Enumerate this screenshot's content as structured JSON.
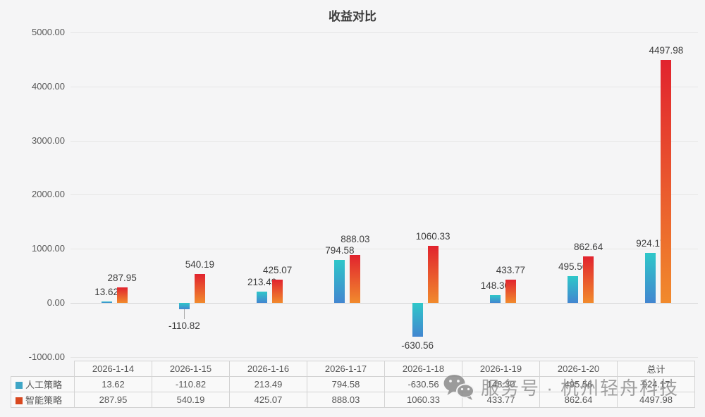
{
  "chart_data": {
    "type": "bar",
    "title": "收益对比",
    "categories": [
      "2026-1-14",
      "2026-1-15",
      "2026-1-16",
      "2026-1-17",
      "2026-1-18",
      "2026-1-19",
      "2026-1-20",
      "总计"
    ],
    "series": [
      {
        "name": "人工策略",
        "values": [
          13.62,
          -110.82,
          213.49,
          794.58,
          -630.56,
          148.3,
          495.56,
          924.17
        ],
        "labels": [
          "13.62",
          "-110.82",
          "213.49",
          "794.58",
          "-630.56",
          "148.30",
          "495.56",
          "924.17"
        ],
        "bar_color_top": "#2fc7c9",
        "bar_color_bottom": "#4286d0",
        "legend_color": "#3fa6c6"
      },
      {
        "name": "智能策略",
        "values": [
          287.95,
          540.19,
          425.07,
          888.03,
          1060.33,
          433.77,
          862.64,
          4497.98
        ],
        "labels": [
          "287.95",
          "540.19",
          "425.07",
          "888.03",
          "1060.33",
          "433.77",
          "862.64",
          "4497.98"
        ],
        "bar_color_top": "#e1232e",
        "bar_color_bottom": "#f18a2d",
        "legend_color": "#d9481f"
      }
    ],
    "ylim": [
      -1000,
      5000
    ],
    "ytick_values": [
      5000,
      4000,
      3000,
      2000,
      1000,
      0,
      -1000
    ],
    "ytick_labels": [
      "5000.00",
      "4000.00",
      "3000.00",
      "2000.00",
      "1000.00",
      "0.00",
      "-1000.00"
    ],
    "grid": true,
    "legend_position": "table-rows-left"
  },
  "watermark": {
    "icon": "wechat-icon",
    "text": "服务号 · 杭州轻舟科技"
  }
}
